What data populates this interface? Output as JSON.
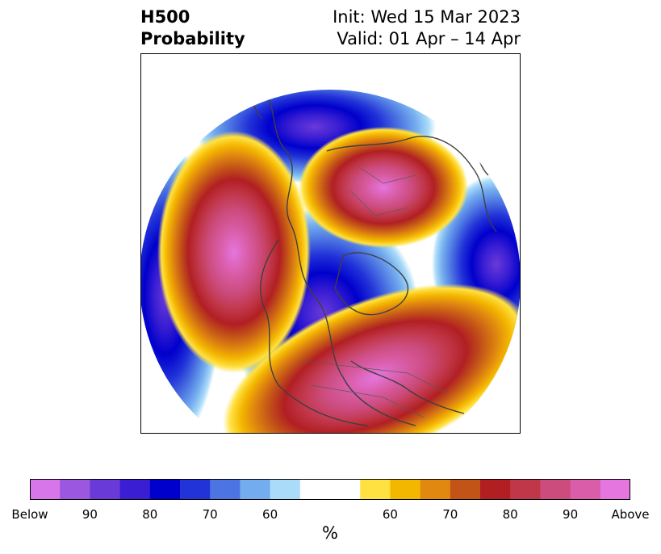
{
  "title": {
    "line1_left": "H500",
    "line2_left": "Probability",
    "line1_right": "Init: Wed 15 Mar 2023",
    "line2_right": "Valid: 01 Apr – 14 Apr"
  },
  "colorbar": {
    "colors": [
      "#d676e8",
      "#9b57df",
      "#6a3ad9",
      "#3a1ed3",
      "#0000cc",
      "#2233d8",
      "#4c74e2",
      "#74adef",
      "#aadbf8",
      "#ffffff",
      "#ffffff",
      "#ffe141",
      "#f4b700",
      "#e0880f",
      "#c35418",
      "#b11f23",
      "#c1374a",
      "#cc4c7e",
      "#d95da8",
      "#e576df"
    ],
    "labels": [
      "Below",
      "90",
      "80",
      "70",
      "60",
      "",
      "60",
      "70",
      "80",
      "90",
      "Above"
    ],
    "units": "%"
  }
}
